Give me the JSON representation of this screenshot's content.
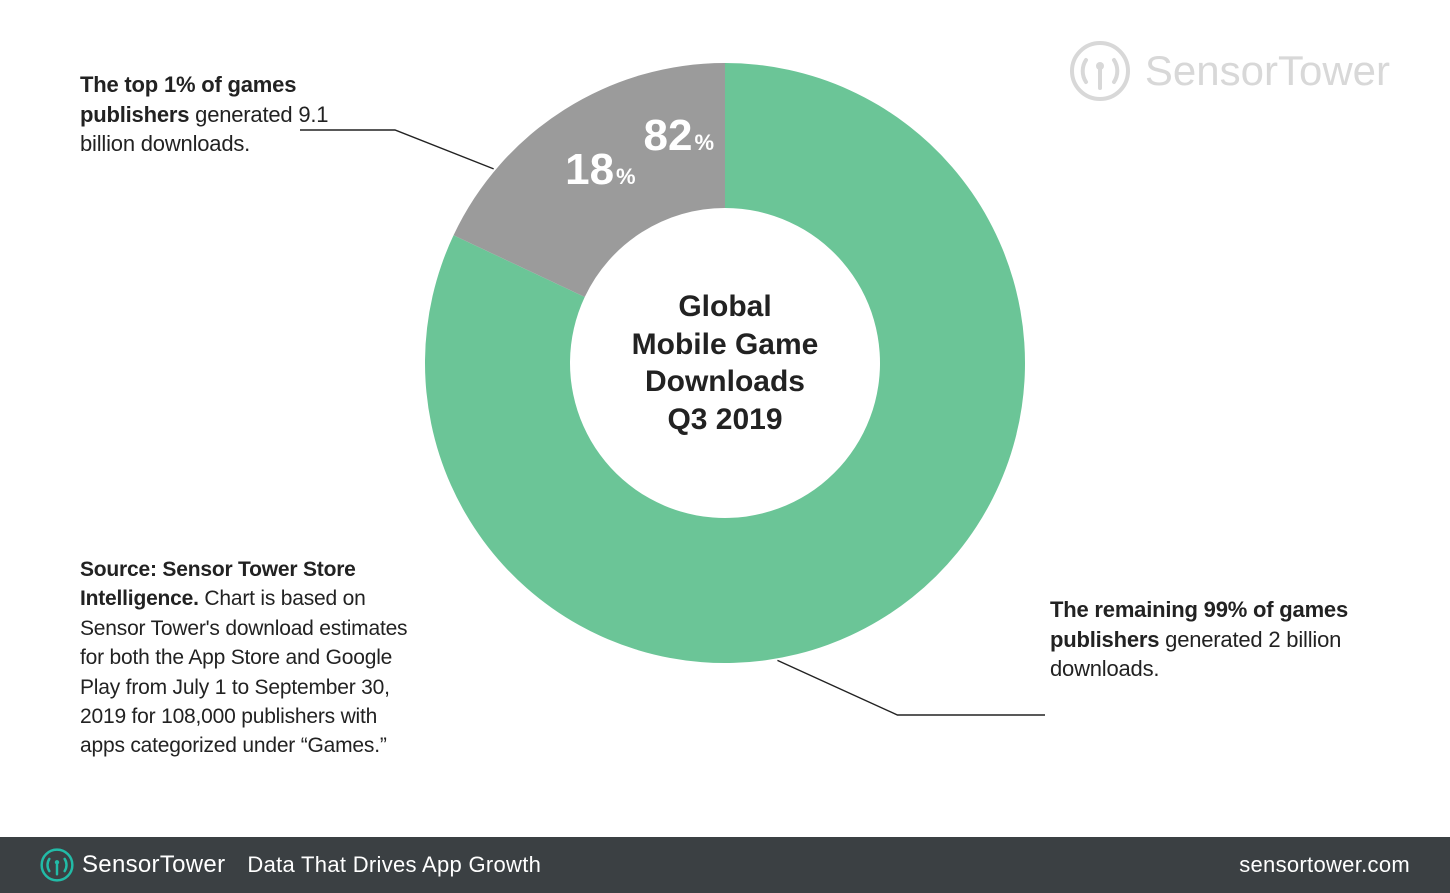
{
  "chart": {
    "type": "donut",
    "center_title": "Global\nMobile Game\nDownloads\nQ3 2019",
    "center_fontsize": 30,
    "outer_radius": 300,
    "inner_radius": 155,
    "start_angle_deg": -90,
    "background_color": "#ffffff",
    "slices": [
      {
        "label": "Top 1%",
        "value": 82,
        "percent_text": "82",
        "percent_sign": "%",
        "color": "#6bc597"
      },
      {
        "label": "Remaining 99%",
        "value": 18,
        "percent_text": "18",
        "percent_sign": "%",
        "color": "#9b9b9b"
      }
    ],
    "slice_percent_label_color": "#ffffff",
    "slice_percent_big_fontsize": 44,
    "slice_percent_sign_fontsize": 22
  },
  "callouts": {
    "top_left": {
      "bold": "The top 1% of games publishers",
      "rest": " generated 9.1 billion downloads."
    },
    "bottom_right": {
      "bold": "The remaining 99% of games publishers",
      "rest": " generated 2 billion downloads."
    }
  },
  "source": {
    "bold": "Source: Sensor Tower Store Intelligence.",
    "rest": " Chart is based on Sensor Tower's download estimates for both the App Store and Google Play from July 1 to September 30, 2019 for 108,000 publishers with apps categorized under “Games.”"
  },
  "branding": {
    "logo_text": "SensorTower",
    "logo_color_top": "#d8d8d8",
    "logo_color_footer_icon": "#22bba7",
    "logo_color_footer_text": "#ffffff"
  },
  "footer": {
    "background_color": "#3b4043",
    "tagline": "Data That Drives App Growth",
    "url": "sensortower.com",
    "text_color": "#ffffff"
  },
  "leader_lines": {
    "stroke": "#222222",
    "stroke_width": 1.4
  }
}
